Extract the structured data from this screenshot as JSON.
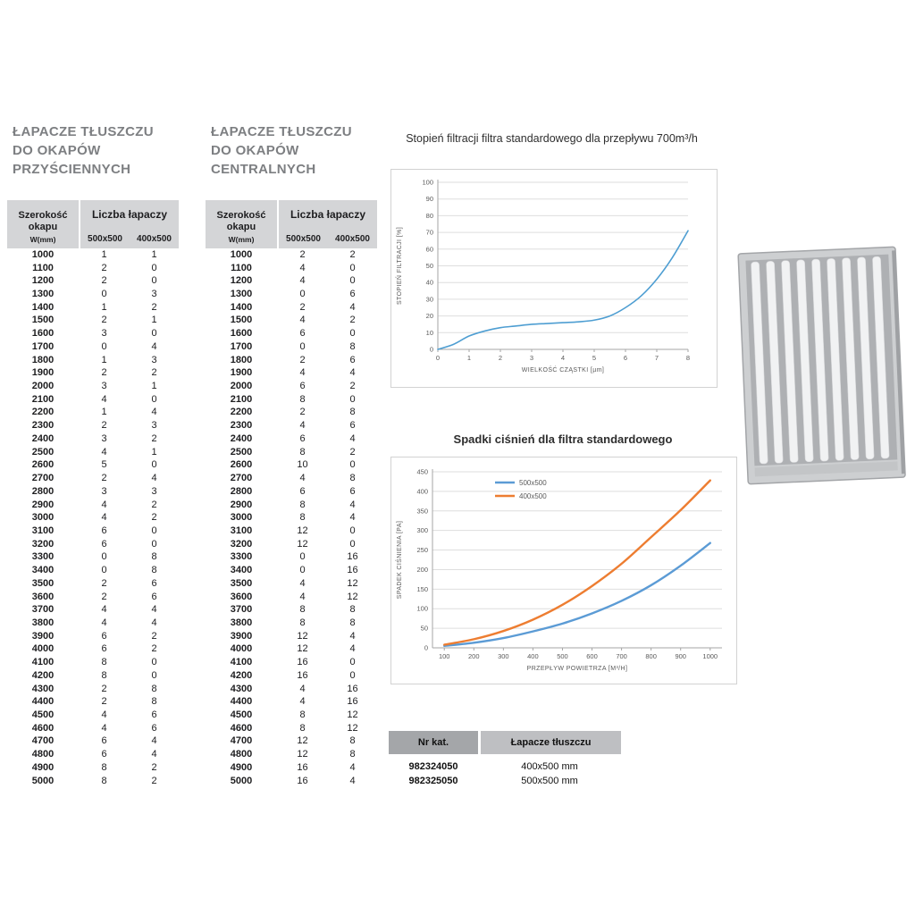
{
  "left_table": {
    "heading": [
      "ŁAPACZE TŁUSZCZU",
      "DO OKAPÓW",
      "PRZYŚCIENNYCH"
    ],
    "header": {
      "col1": "Szerokość okapu",
      "col1_sub": "W(mm)",
      "group": "Liczba łapaczy",
      "sizes": [
        "500x500",
        "400x500"
      ]
    },
    "rows": [
      [
        1000,
        1,
        1
      ],
      [
        1100,
        2,
        0
      ],
      [
        1200,
        2,
        0
      ],
      [
        1300,
        0,
        3
      ],
      [
        1400,
        1,
        2
      ],
      [
        1500,
        2,
        1
      ],
      [
        1600,
        3,
        0
      ],
      [
        1700,
        0,
        4
      ],
      [
        1800,
        1,
        3
      ],
      [
        1900,
        2,
        2
      ],
      [
        2000,
        3,
        1
      ],
      [
        2100,
        4,
        0
      ],
      [
        2200,
        1,
        4
      ],
      [
        2300,
        2,
        3
      ],
      [
        2400,
        3,
        2
      ],
      [
        2500,
        4,
        1
      ],
      [
        2600,
        5,
        0
      ],
      [
        2700,
        2,
        4
      ],
      [
        2800,
        3,
        3
      ],
      [
        2900,
        4,
        2
      ],
      [
        3000,
        4,
        2
      ],
      [
        3100,
        6,
        0
      ],
      [
        3200,
        6,
        0
      ],
      [
        3300,
        0,
        8
      ],
      [
        3400,
        0,
        8
      ],
      [
        3500,
        2,
        6
      ],
      [
        3600,
        2,
        6
      ],
      [
        3700,
        4,
        4
      ],
      [
        3800,
        4,
        4
      ],
      [
        3900,
        6,
        2
      ],
      [
        4000,
        6,
        2
      ],
      [
        4100,
        8,
        0
      ],
      [
        4200,
        8,
        0
      ],
      [
        4300,
        2,
        8
      ],
      [
        4400,
        2,
        8
      ],
      [
        4500,
        4,
        6
      ],
      [
        4600,
        4,
        6
      ],
      [
        4700,
        6,
        4
      ],
      [
        4800,
        6,
        4
      ],
      [
        4900,
        8,
        2
      ],
      [
        5000,
        8,
        2
      ]
    ]
  },
  "center_table": {
    "heading": [
      "ŁAPACZE TŁUSZCZU",
      "DO OKAPÓW",
      "CENTRALNYCH"
    ],
    "header": {
      "col1": "Szerokość okapu",
      "col1_sub": "W(mm)",
      "group": "Liczba łapaczy",
      "sizes": [
        "500x500",
        "400x500"
      ]
    },
    "rows": [
      [
        1000,
        2,
        2
      ],
      [
        1100,
        4,
        0
      ],
      [
        1200,
        4,
        0
      ],
      [
        1300,
        0,
        6
      ],
      [
        1400,
        2,
        4
      ],
      [
        1500,
        4,
        2
      ],
      [
        1600,
        6,
        0
      ],
      [
        1700,
        0,
        8
      ],
      [
        1800,
        2,
        6
      ],
      [
        1900,
        4,
        4
      ],
      [
        2000,
        6,
        2
      ],
      [
        2100,
        8,
        0
      ],
      [
        2200,
        2,
        8
      ],
      [
        2300,
        4,
        6
      ],
      [
        2400,
        6,
        4
      ],
      [
        2500,
        8,
        2
      ],
      [
        2600,
        10,
        0
      ],
      [
        2700,
        4,
        8
      ],
      [
        2800,
        6,
        6
      ],
      [
        2900,
        8,
        4
      ],
      [
        3000,
        8,
        4
      ],
      [
        3100,
        12,
        0
      ],
      [
        3200,
        12,
        0
      ],
      [
        3300,
        0,
        16
      ],
      [
        3400,
        0,
        16
      ],
      [
        3500,
        4,
        12
      ],
      [
        3600,
        4,
        12
      ],
      [
        3700,
        8,
        8
      ],
      [
        3800,
        8,
        8
      ],
      [
        3900,
        12,
        4
      ],
      [
        4000,
        12,
        4
      ],
      [
        4100,
        16,
        0
      ],
      [
        4200,
        16,
        0
      ],
      [
        4300,
        4,
        16
      ],
      [
        4400,
        4,
        16
      ],
      [
        4500,
        8,
        12
      ],
      [
        4600,
        8,
        12
      ],
      [
        4700,
        12,
        8
      ],
      [
        4800,
        12,
        8
      ],
      [
        4900,
        16,
        4
      ],
      [
        5000,
        16,
        4
      ]
    ]
  },
  "chart_data": [
    {
      "type": "line",
      "title": "Stopień filtracji filtra standardowego dla przepływu 700m³/h",
      "xlabel": "WIELKOŚĆ CZĄSTKI [µm]",
      "ylabel": "STOPIEŃ FILTRACJI [%]",
      "xlim": [
        0,
        8
      ],
      "ylim": [
        0,
        100
      ],
      "xticks": [
        0,
        1,
        2,
        3,
        4,
        5,
        6,
        7,
        8
      ],
      "yticks": [
        0,
        10,
        20,
        30,
        40,
        50,
        60,
        70,
        80,
        90,
        100
      ],
      "grid": true,
      "series": [
        {
          "name": "stopień filtracji",
          "color": "#4e9ed2",
          "width": 1.6,
          "x": [
            0,
            0.5,
            1,
            1.5,
            2,
            2.5,
            3,
            3.5,
            4,
            4.5,
            5,
            5.5,
            6,
            6.5,
            7,
            7.5,
            8
          ],
          "y": [
            0,
            3,
            8,
            11,
            13,
            14,
            15,
            15.5,
            16,
            16.5,
            17.5,
            20,
            25,
            32,
            42,
            55,
            71
          ]
        }
      ]
    },
    {
      "type": "line",
      "title": "Spadki ciśnień dla filtra standardowego",
      "xlabel": "PRZEPŁYW POWIETRZA [M³/H]",
      "ylabel": "SPADEK CIŚNIENIA [PA]",
      "xlim": [
        60,
        1040
      ],
      "ylim": [
        0,
        450
      ],
      "xticks": [
        100,
        200,
        300,
        400,
        500,
        600,
        700,
        800,
        900,
        1000
      ],
      "yticks": [
        0,
        50,
        100,
        150,
        200,
        250,
        300,
        350,
        400,
        450
      ],
      "grid": true,
      "legend": [
        "500x500",
        "400x500"
      ],
      "legend_position": "top-center",
      "legend_offset": 70,
      "series": [
        {
          "name": "500x500",
          "color": "#5b9bd5",
          "width": 2.4,
          "x": [
            100,
            200,
            300,
            400,
            500,
            600,
            700,
            800,
            900,
            1000
          ],
          "y": [
            5,
            13,
            25,
            42,
            62,
            88,
            120,
            160,
            210,
            268
          ]
        },
        {
          "name": "400x500",
          "color": "#ed7d31",
          "width": 2.4,
          "x": [
            100,
            200,
            300,
            400,
            500,
            600,
            700,
            800,
            900,
            1000
          ],
          "y": [
            8,
            22,
            43,
            72,
            110,
            158,
            215,
            283,
            352,
            428
          ]
        }
      ]
    }
  ],
  "catalog_table": {
    "headers": [
      "Nr kat.",
      "Łapacze tłuszczu"
    ],
    "rows": [
      [
        "982324050",
        "400x500 mm"
      ],
      [
        "982325050",
        "500x500 mm"
      ]
    ]
  }
}
